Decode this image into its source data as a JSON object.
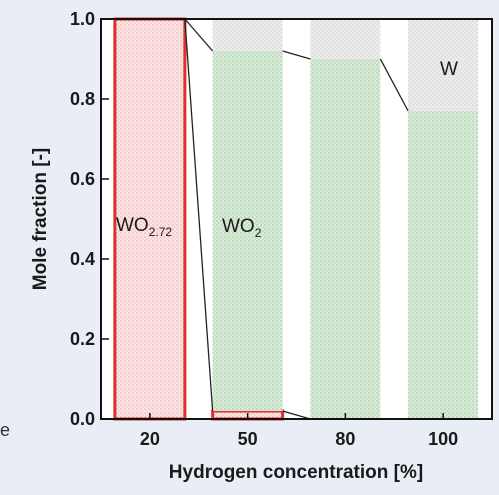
{
  "edge_text": "e",
  "chart_data": {
    "type": "bar",
    "stacked": true,
    "categories": [
      "20",
      "50",
      "80",
      "100"
    ],
    "xlabel": "Hydrogen concentration [%]",
    "ylabel": "Mole fraction [-]",
    "ylim": [
      0,
      1.0
    ],
    "yticks": [
      "0.0",
      "0.2",
      "0.4",
      "0.6",
      "0.8",
      "1.0"
    ],
    "series": [
      {
        "name": "WO2.72",
        "values": [
          1.0,
          0.02,
          0.0,
          0.0
        ],
        "color": "#e0302c"
      },
      {
        "name": "WO2",
        "values": [
          0.0,
          0.9,
          0.9,
          0.77
        ],
        "color": "#9ccc9c"
      },
      {
        "name": "W",
        "values": [
          0.0,
          0.08,
          0.1,
          0.23
        ],
        "color": "#bdbdbd"
      }
    ],
    "annotations": {
      "wo272": {
        "main": "WO",
        "sub": "2.72"
      },
      "wo2": {
        "main": "WO",
        "sub": "2"
      },
      "w": "W"
    },
    "grid": false,
    "legend": "none"
  }
}
